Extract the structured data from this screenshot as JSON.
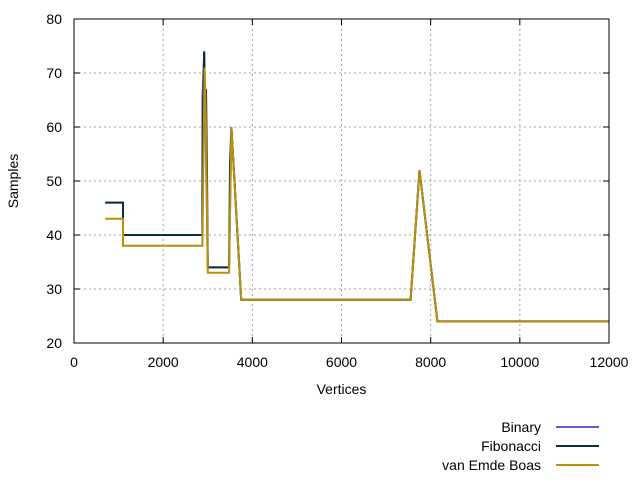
{
  "chart_data": {
    "type": "line",
    "title": "",
    "xlabel": "Vertices",
    "ylabel": "Samples",
    "xlim": [
      0,
      12000
    ],
    "ylim": [
      20,
      80
    ],
    "xticks": [
      0,
      2000,
      4000,
      6000,
      8000,
      10000,
      12000
    ],
    "yticks": [
      20,
      30,
      40,
      50,
      60,
      70,
      80
    ],
    "grid": true,
    "legend_position": "bottom-right, below plot",
    "series": [
      {
        "name": "Binary",
        "color": "#6a5acd",
        "points": [
          [
            700,
            46
          ],
          [
            1100,
            46
          ],
          [
            1100,
            40
          ],
          [
            2880,
            40
          ],
          [
            2880,
            65
          ],
          [
            2920,
            74
          ],
          [
            2960,
            55
          ],
          [
            3000,
            34
          ],
          [
            3480,
            34
          ],
          [
            3530,
            60
          ],
          [
            3750,
            28
          ],
          [
            7550,
            28
          ],
          [
            7750,
            52
          ],
          [
            8150,
            24
          ],
          [
            12000,
            24
          ]
        ]
      },
      {
        "name": "Fibonacci",
        "color": "#0a3040",
        "points": [
          [
            700,
            46
          ],
          [
            1100,
            46
          ],
          [
            1100,
            40
          ],
          [
            2880,
            40
          ],
          [
            2880,
            48
          ],
          [
            2900,
            65
          ],
          [
            2920,
            74
          ],
          [
            2940,
            60
          ],
          [
            2960,
            67
          ],
          [
            2980,
            54
          ],
          [
            3000,
            34
          ],
          [
            3480,
            34
          ],
          [
            3500,
            53
          ],
          [
            3530,
            60
          ],
          [
            3750,
            28
          ],
          [
            7550,
            28
          ],
          [
            7750,
            52
          ],
          [
            8150,
            24
          ],
          [
            12000,
            24
          ]
        ]
      },
      {
        "name": "van Emde Boas",
        "color": "#b8900a",
        "points": [
          [
            700,
            43
          ],
          [
            1100,
            43
          ],
          [
            1100,
            38
          ],
          [
            2880,
            38
          ],
          [
            2900,
            52
          ],
          [
            2930,
            71
          ],
          [
            2960,
            60
          ],
          [
            3000,
            33
          ],
          [
            3480,
            33
          ],
          [
            3530,
            60
          ],
          [
            3750,
            28
          ],
          [
            7550,
            28
          ],
          [
            7750,
            52
          ],
          [
            8150,
            24
          ],
          [
            12000,
            24
          ]
        ]
      }
    ]
  }
}
